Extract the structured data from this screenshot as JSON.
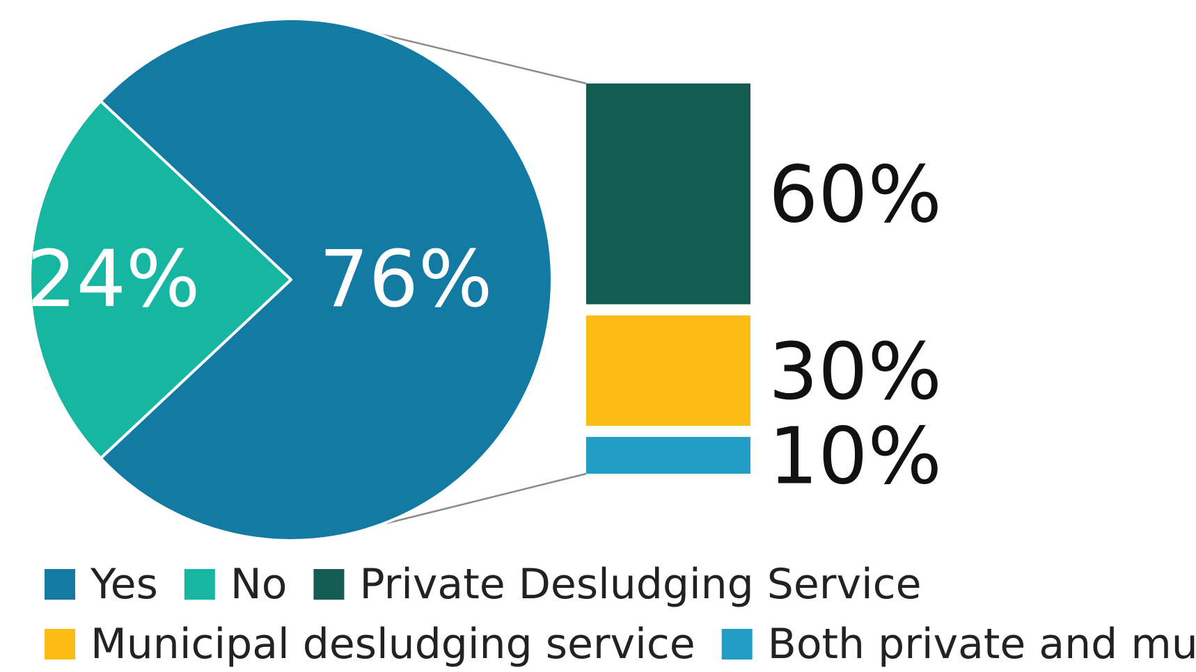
{
  "chart_data": {
    "type": "pie",
    "pie": {
      "slices": [
        {
          "name": "Yes",
          "value": 76,
          "label": "76%",
          "color": "#137ba3"
        },
        {
          "name": "No",
          "value": 24,
          "label": "24%",
          "color": "#17b6a3"
        }
      ]
    },
    "breakdown": {
      "of": "Yes",
      "type": "stacked-bar",
      "segments": [
        {
          "name": "Private Desludging Service",
          "value": 60,
          "label": "60%",
          "color": "#145c52"
        },
        {
          "name": "Municipal desludging service",
          "value": 30,
          "label": "30%",
          "color": "#fbbd13"
        },
        {
          "name": "Both private and municipa",
          "value": 10,
          "label": "10%",
          "color": "#229dc3"
        }
      ]
    },
    "legend": {
      "placement": "bottom",
      "items": [
        {
          "label": "Yes",
          "color": "#137ba3"
        },
        {
          "label": "No",
          "color": "#17b6a3"
        },
        {
          "label": "Private Desludging Service",
          "color": "#145c52"
        },
        {
          "label": "Municipal desludging service",
          "color": "#fbbd13"
        },
        {
          "label": "Both private and municipa",
          "color": "#229dc3"
        }
      ]
    }
  },
  "colors": {
    "connector": "#8a8a8a",
    "slice_border": "#ffffff",
    "pie_label_text": "#ffffff",
    "bar_label_text": "#111111"
  }
}
